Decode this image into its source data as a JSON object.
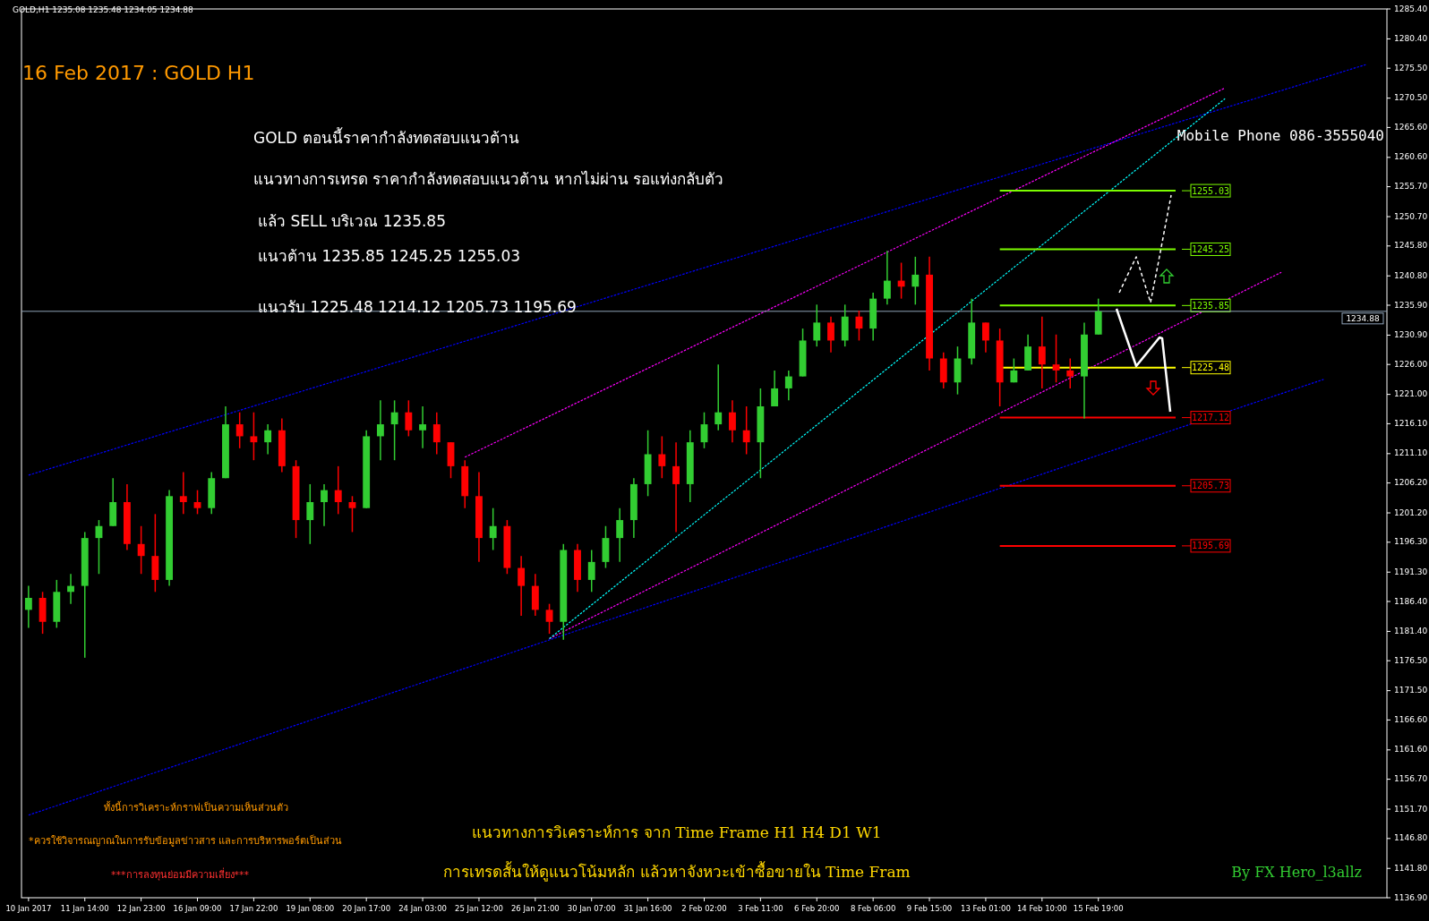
{
  "chart_data": {
    "type": "candlestick",
    "title": "16 Feb 2017 : GOLD H1",
    "categories": [
      "10 Jan 2017",
      null,
      null,
      null,
      "11 Jan 14:00",
      null,
      null,
      null,
      "12 Jan 23:00",
      null,
      null,
      null,
      "16 Jan 09:00",
      null,
      null,
      null,
      "17 Jan 22:00",
      null,
      null,
      null,
      "19 Jan 08:00",
      null,
      null,
      null,
      "20 Jan 17:00",
      null,
      null,
      null,
      "24 Jan 03:00",
      null,
      null,
      null,
      "25 Jan 12:00",
      null,
      null,
      null,
      "26 Jan 21:00",
      null,
      null,
      null,
      "30 Jan 07:00",
      null,
      null,
      null,
      "31 Jan 16:00",
      null,
      null,
      null,
      "2 Feb 02:00",
      null,
      null,
      null,
      "3 Feb 11:00",
      null,
      null,
      null,
      "6 Feb 20:00",
      null,
      null,
      null,
      "8 Feb 06:00",
      null,
      null,
      null,
      "9 Feb 15:00",
      null,
      null,
      null,
      "13 Feb 01:00",
      null,
      null,
      null,
      "14 Feb 10:00",
      null,
      null,
      null,
      "15 Feb 19:00",
      null,
      null,
      null,
      null,
      null,
      null,
      null,
      null,
      null,
      null,
      null,
      null,
      null,
      null,
      null,
      null,
      null,
      null,
      null,
      null
    ],
    "ohlc": [
      [
        1185,
        1189,
        1182,
        1187
      ],
      [
        1187,
        1188,
        1181,
        1183
      ],
      [
        1183,
        1190,
        1182,
        1188
      ],
      [
        1188,
        1191,
        1186,
        1189
      ],
      [
        1189,
        1198,
        1177,
        1197
      ],
      [
        1197,
        1200,
        1191,
        1199
      ],
      [
        1199,
        1207,
        1199,
        1203
      ],
      [
        1203,
        1206,
        1195,
        1196
      ],
      [
        1196,
        1199,
        1191,
        1194
      ],
      [
        1194,
        1201,
        1188,
        1190
      ],
      [
        1190,
        1205,
        1189,
        1204
      ],
      [
        1204,
        1208,
        1201,
        1203
      ],
      [
        1203,
        1205,
        1201,
        1202
      ],
      [
        1202,
        1208,
        1201,
        1207
      ],
      [
        1207,
        1219,
        1207,
        1216
      ],
      [
        1216,
        1218,
        1212,
        1214
      ],
      [
        1214,
        1218,
        1210,
        1213
      ],
      [
        1213,
        1216,
        1211,
        1215
      ],
      [
        1215,
        1217,
        1208,
        1209
      ],
      [
        1209,
        1210,
        1197,
        1200
      ],
      [
        1200,
        1206,
        1196,
        1203
      ],
      [
        1203,
        1206,
        1199,
        1205
      ],
      [
        1205,
        1209,
        1201,
        1203
      ],
      [
        1203,
        1204,
        1198,
        1202
      ],
      [
        1202,
        1215,
        1202,
        1214
      ],
      [
        1214,
        1220,
        1210,
        1216
      ],
      [
        1216,
        1220,
        1210,
        1218
      ],
      [
        1218,
        1220,
        1214,
        1215
      ],
      [
        1215,
        1219,
        1212,
        1216
      ],
      [
        1216,
        1218,
        1211,
        1213
      ],
      [
        1213,
        1213,
        1207,
        1209
      ],
      [
        1209,
        1210,
        1202,
        1204
      ],
      [
        1204,
        1208,
        1193,
        1197
      ],
      [
        1197,
        1202,
        1195,
        1199
      ],
      [
        1199,
        1200,
        1191,
        1192
      ],
      [
        1192,
        1194,
        1184,
        1189
      ],
      [
        1189,
        1191,
        1184,
        1185
      ],
      [
        1185,
        1186,
        1181,
        1183
      ],
      [
        1183,
        1196,
        1180,
        1195
      ],
      [
        1195,
        1196,
        1188,
        1190
      ],
      [
        1190,
        1195,
        1188,
        1193
      ],
      [
        1193,
        1199,
        1192,
        1197
      ],
      [
        1197,
        1202,
        1193,
        1200
      ],
      [
        1200,
        1207,
        1197,
        1206
      ],
      [
        1206,
        1215,
        1204,
        1211
      ],
      [
        1211,
        1214,
        1207,
        1209
      ],
      [
        1209,
        1213,
        1198,
        1206
      ],
      [
        1206,
        1215,
        1203,
        1213
      ],
      [
        1213,
        1218,
        1212,
        1216
      ],
      [
        1216,
        1226,
        1215,
        1218
      ],
      [
        1218,
        1220,
        1213,
        1215
      ],
      [
        1215,
        1219,
        1211,
        1213
      ],
      [
        1213,
        1222,
        1207,
        1219
      ],
      [
        1219,
        1225,
        1219,
        1222
      ],
      [
        1222,
        1225,
        1220,
        1224
      ],
      [
        1224,
        1232,
        1224,
        1230
      ],
      [
        1230,
        1236,
        1229,
        1233
      ],
      [
        1233,
        1234,
        1228,
        1230
      ],
      [
        1230,
        1236,
        1229,
        1234
      ],
      [
        1234,
        1235,
        1230,
        1232
      ],
      [
        1232,
        1238,
        1230,
        1237
      ],
      [
        1237,
        1245,
        1236,
        1240
      ],
      [
        1240,
        1243,
        1237,
        1239
      ],
      [
        1239,
        1244,
        1236,
        1241
      ],
      [
        1241,
        1244,
        1225,
        1227
      ],
      [
        1227,
        1228,
        1222,
        1223
      ],
      [
        1223,
        1229,
        1221,
        1227
      ],
      [
        1227,
        1237,
        1226,
        1233
      ],
      [
        1233,
        1233,
        1228,
        1230
      ],
      [
        1230,
        1232,
        1219,
        1223
      ],
      [
        1223,
        1227,
        1223,
        1225
      ],
      [
        1225,
        1231,
        1225,
        1229
      ],
      [
        1229,
        1234,
        1222,
        1226
      ],
      [
        1226,
        1231,
        1223,
        1225
      ],
      [
        1225,
        1227,
        1222,
        1224
      ],
      [
        1224,
        1233,
        1217,
        1231
      ],
      [
        1231,
        1237,
        1231,
        1234.88
      ],
      null,
      null,
      null,
      null,
      null,
      null,
      null,
      null,
      null,
      null,
      null,
      null,
      null,
      null,
      null,
      null,
      null,
      null,
      null,
      null
    ],
    "colors": [
      "#32cd32",
      "#ff0000",
      "#32cd32",
      "#32cd32",
      "#32cd32",
      "#32cd32",
      "#32cd32",
      "#ff0000",
      "#ff0000",
      "#ff0000",
      "#32cd32",
      "#ff0000",
      "#ff0000",
      "#32cd32",
      "#32cd32",
      "#ff0000",
      "#ff0000",
      "#32cd32",
      "#ff0000",
      "#ff0000",
      "#32cd32",
      "#32cd32",
      "#ff0000",
      "#ff0000",
      "#32cd32",
      "#32cd32",
      "#32cd32",
      "#ff0000",
      "#32cd32",
      "#ff0000",
      "#ff0000",
      "#ff0000",
      "#ff0000",
      "#32cd32",
      "#ff0000",
      "#ff0000",
      "#ff0000",
      "#ff0000",
      "#32cd32",
      "#ff0000",
      "#32cd32",
      "#32cd32",
      "#32cd32",
      "#32cd32",
      "#32cd32",
      "#ff0000",
      "#ff0000",
      "#32cd32",
      "#32cd32",
      "#32cd32",
      "#ff0000",
      "#ff0000",
      "#32cd32",
      "#32cd32",
      "#32cd32",
      "#32cd32",
      "#32cd32",
      "#ff0000",
      "#32cd32",
      "#ff0000",
      "#32cd32",
      "#32cd32",
      "#ff0000",
      "#32cd32",
      "#ff0000",
      "#ff0000",
      "#32cd32",
      "#32cd32",
      "#ff0000",
      "#ff0000",
      "#32cd32",
      "#32cd32",
      "#ff0000",
      "#ff0000",
      "#ff0000",
      "#32cd32",
      "#32cd32",
      null,
      null,
      null,
      null,
      null,
      null,
      null,
      null,
      null,
      null,
      null,
      null,
      null,
      null,
      null,
      null,
      null,
      null,
      null,
      null
    ],
    "series": [
      {
        "type": "line",
        "color": "#0000ff",
        "line_style": "dotted",
        "values": [
          1207.5,
          null,
          null,
          null,
          null,
          null,
          null,
          null,
          null,
          null,
          null,
          null,
          null,
          null,
          null,
          null,
          null,
          null,
          null,
          null,
          null,
          null,
          null,
          null,
          null,
          null,
          null,
          null,
          null,
          null,
          null,
          null,
          null,
          null,
          null,
          null,
          null,
          null,
          null,
          null,
          null,
          null,
          null,
          null,
          null,
          null,
          null,
          null,
          null,
          null,
          null,
          null,
          null,
          null,
          null,
          null,
          null,
          null,
          null,
          null,
          null,
          null,
          null,
          null,
          null,
          null,
          null,
          null,
          null,
          null,
          null,
          null,
          null,
          null,
          null,
          null,
          null,
          null,
          null,
          null,
          null,
          null,
          null,
          null,
          null,
          null,
          null,
          null,
          null,
          null,
          null,
          null,
          null,
          null,
          null,
          1276.1,
          null
        ]
      },
      {
        "type": "line",
        "color": "#0000ff",
        "line_style": "dotted",
        "values": [
          1150.7,
          null,
          null,
          null,
          null,
          null,
          null,
          null,
          null,
          null,
          null,
          null,
          null,
          null,
          null,
          null,
          null,
          null,
          null,
          null,
          null,
          null,
          null,
          null,
          null,
          null,
          null,
          null,
          null,
          null,
          null,
          null,
          null,
          null,
          null,
          null,
          null,
          null,
          null,
          null,
          null,
          null,
          null,
          null,
          null,
          null,
          null,
          null,
          null,
          null,
          null,
          null,
          null,
          null,
          null,
          null,
          null,
          null,
          null,
          null,
          null,
          null,
          null,
          null,
          null,
          null,
          null,
          null,
          null,
          null,
          null,
          null,
          null,
          null,
          null,
          null,
          null,
          null,
          null,
          null,
          null,
          null,
          null,
          null,
          null,
          null,
          null,
          null,
          null,
          null,
          null,
          null,
          1223.5,
          null,
          null,
          null,
          null
        ]
      },
      {
        "type": "line",
        "color": "#ff00ff",
        "line_style": "dotted",
        "values": [
          null,
          null,
          null,
          null,
          null,
          null,
          null,
          null,
          null,
          null,
          null,
          null,
          null,
          null,
          null,
          null,
          null,
          null,
          null,
          null,
          null,
          null,
          null,
          null,
          null,
          null,
          null,
          null,
          null,
          null,
          null,
          1210.5,
          null,
          null,
          null,
          null,
          null,
          null,
          null,
          null,
          null,
          null,
          null,
          null,
          null,
          null,
          null,
          null,
          null,
          null,
          null,
          null,
          null,
          null,
          null,
          null,
          null,
          null,
          null,
          null,
          null,
          null,
          null,
          null,
          null,
          null,
          null,
          null,
          null,
          null,
          null,
          null,
          null,
          null,
          null,
          null,
          null,
          null,
          null,
          null,
          null,
          null,
          null,
          null,
          null,
          1272.2,
          null,
          null,
          null,
          null,
          null,
          null,
          null,
          null,
          null,
          null,
          null
        ]
      },
      {
        "type": "line",
        "color": "#ff00ff",
        "line_style": "dotted",
        "values": [
          null,
          null,
          null,
          null,
          null,
          null,
          null,
          null,
          null,
          null,
          null,
          null,
          null,
          null,
          null,
          null,
          null,
          null,
          null,
          null,
          null,
          null,
          null,
          null,
          null,
          null,
          null,
          null,
          null,
          null,
          null,
          null,
          null,
          null,
          null,
          null,
          null,
          1180.2,
          null,
          null,
          null,
          null,
          null,
          null,
          null,
          null,
          null,
          null,
          null,
          null,
          null,
          null,
          null,
          null,
          null,
          null,
          null,
          null,
          null,
          null,
          null,
          null,
          null,
          null,
          null,
          null,
          null,
          null,
          null,
          null,
          null,
          null,
          null,
          null,
          null,
          null,
          null,
          null,
          null,
          null,
          null,
          null,
          null,
          null,
          null,
          null,
          null,
          null,
          null,
          1241.4,
          null,
          null,
          null,
          null,
          null,
          null,
          null
        ]
      },
      {
        "type": "line",
        "color": "#00ffff",
        "line_style": "dotted",
        "values": [
          null,
          null,
          null,
          null,
          null,
          null,
          null,
          null,
          null,
          null,
          null,
          null,
          null,
          null,
          null,
          null,
          null,
          null,
          null,
          null,
          null,
          null,
          null,
          null,
          null,
          null,
          null,
          null,
          null,
          null,
          null,
          null,
          null,
          null,
          null,
          null,
          null,
          1180.2,
          null,
          null,
          null,
          null,
          null,
          null,
          null,
          null,
          null,
          null,
          null,
          null,
          null,
          null,
          null,
          null,
          null,
          null,
          null,
          null,
          null,
          null,
          null,
          null,
          null,
          null,
          null,
          null,
          null,
          null,
          null,
          null,
          null,
          null,
          null,
          null,
          null,
          null,
          null,
          null,
          null,
          null,
          null,
          null,
          null,
          null,
          null,
          1270.4,
          null,
          null,
          null,
          null,
          null,
          null,
          null,
          null,
          null,
          null,
          null
        ]
      }
    ],
    "ylim": [
      1136.9,
      1285.4
    ],
    "yticks": [
      {
        "value": 1285.4,
        "label": "1285.40"
      },
      {
        "value": 1280.4,
        "label": "1280.40"
      },
      {
        "value": 1275.5,
        "label": "1275.50"
      },
      {
        "value": 1270.5,
        "label": "1270.50"
      },
      {
        "value": 1265.6,
        "label": "1265.60"
      },
      {
        "value": 1260.6,
        "label": "1260.60"
      },
      {
        "value": 1255.7,
        "label": "1255.70"
      },
      {
        "value": 1250.7,
        "label": "1250.70"
      },
      {
        "value": 1245.8,
        "label": "1245.80"
      },
      {
        "value": 1240.8,
        "label": "1240.80"
      },
      {
        "value": 1235.9,
        "label": "1235.90"
      },
      {
        "value": 1230.9,
        "label": "1230.90"
      },
      {
        "value": 1226,
        "label": "1226.00"
      },
      {
        "value": 1221,
        "label": "1221.00"
      },
      {
        "value": 1216.1,
        "label": "1216.10"
      },
      {
        "value": 1211.1,
        "label": "1211.10"
      },
      {
        "value": 1206.2,
        "label": "1206.20"
      },
      {
        "value": 1201.2,
        "label": "1201.20"
      },
      {
        "value": 1196.3,
        "label": "1196.30"
      },
      {
        "value": 1191.3,
        "label": "1191.30"
      },
      {
        "value": 1186.4,
        "label": "1186.40"
      },
      {
        "value": 1181.4,
        "label": "1181.40"
      },
      {
        "value": 1176.5,
        "label": "1176.50"
      },
      {
        "value": 1171.5,
        "label": "1171.50"
      },
      {
        "value": 1166.6,
        "label": "1166.60"
      },
      {
        "value": 1161.6,
        "label": "1161.60"
      },
      {
        "value": 1156.7,
        "label": "1156.70"
      },
      {
        "value": 1151.7,
        "label": "1151.70"
      },
      {
        "value": 1146.8,
        "label": "1146.80"
      },
      {
        "value": 1141.8,
        "label": "1141.80"
      },
      {
        "value": 1136.9,
        "label": "1136.90"
      }
    ],
    "ref_lines": [
      {
        "axis": "y",
        "value": 1255.03,
        "label": "1255.03",
        "color": "#7cfc00"
      },
      {
        "axis": "y",
        "value": 1245.25,
        "label": "1245.25",
        "color": "#7cfc00"
      },
      {
        "axis": "y",
        "value": 1235.85,
        "label": "1235.85",
        "color": "#7cfc00"
      },
      {
        "axis": "y",
        "value": 1225.48,
        "label": "1225.48",
        "color": "#ffff00"
      },
      {
        "axis": "y",
        "value": 1217.12,
        "label": "1217.12",
        "color": "#ff0000"
      },
      {
        "axis": "y",
        "value": 1205.73,
        "label": "1205.73",
        "color": "#ff0000"
      },
      {
        "axis": "y",
        "value": 1195.69,
        "label": "1195.69",
        "color": "#ff0000"
      },
      {
        "axis": "y",
        "value": 1234.88,
        "label": "1234.88",
        "color": "#8fa3b8"
      }
    ],
    "annotations": [
      "GOLD,H1  1235.08 1235.48 1234.05 1234.88",
      "GOLD  ตอนนี้ราคากำลังทดสอบแนวต้าน",
      "แนวทางการเทรด ราคากำลังทดสอบแนวต้าน หากไม่ผ่าน รอแท่งกลับตัว",
      "แล้ว SELL บริเวณ  1235.85",
      "แนวต้าน 1235.85  1245.25  1255.03",
      "แนวรับ  1225.48  1214.12  1205.73  1195.69",
      "Mobile Phone 086-3555040",
      "ทั้งนี้การวิเคราะห์กราฟเป็นความเห็นส่วนตัว",
      "*ควรใช้วิจารณญาณในการรับข้อมูลข่าวสาร และการบริหารพอร์ตเป็นส่วน",
      "***การลงทุนย่อมมีความเสี่ยง***",
      "แนวทางการวิเคราะห์การ จาก Time Frame H1 H4 D1 W1",
      "การเทรดสั้นให้ดูแนวโน้มหลัก แล้วหาจังหวะเข้าซื้อขายใน Time Fram",
      "By FX Hero_l3allz"
    ],
    "grid": false
  }
}
